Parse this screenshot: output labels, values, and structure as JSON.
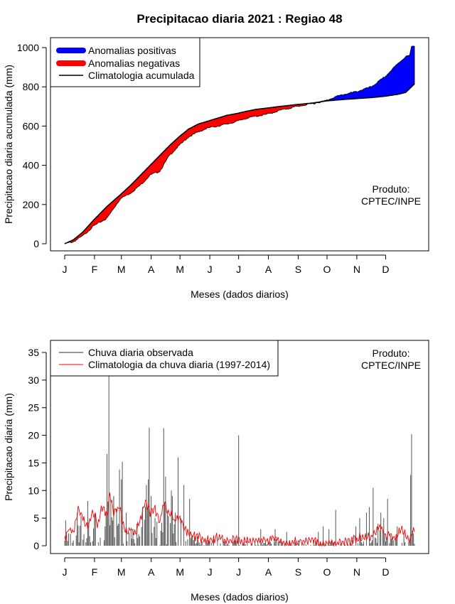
{
  "title": "Precipitacao diaria 2021 : Regiao 48",
  "colors": {
    "positive": "#0000ff",
    "negative": "#ff0000",
    "climatology": "#000000",
    "observed": "#555555",
    "daily_clim": "#ff0000"
  },
  "chart_data": [
    {
      "type": "area",
      "title": "Precipitacao diaria 2021 : Regiao 48",
      "xlabel": "Meses (dados diarios)",
      "ylabel": "Precipitacao diaria acumulada (mm)",
      "ylim": [
        0,
        1000
      ],
      "yticks": [
        "0",
        "200",
        "400",
        "600",
        "800",
        "1000"
      ],
      "months": [
        "J",
        "F",
        "M",
        "A",
        "M",
        "J",
        "J",
        "A",
        "S",
        "O",
        "N",
        "D"
      ],
      "legend": [
        "Anomalias positivas",
        "Anomalias negativas",
        "Climatologia acumulada"
      ],
      "annotation": [
        "Produto:",
        "CPTEC/INPE"
      ],
      "climatology_knots": [
        [
          1,
          0
        ],
        [
          10,
          20
        ],
        [
          20,
          60
        ],
        [
          31,
          120
        ],
        [
          45,
          190
        ],
        [
          59,
          250
        ],
        [
          70,
          300
        ],
        [
          80,
          350
        ],
        [
          90,
          400
        ],
        [
          100,
          450
        ],
        [
          110,
          500
        ],
        [
          120,
          545
        ],
        [
          130,
          585
        ],
        [
          140,
          610
        ],
        [
          150,
          625
        ],
        [
          160,
          640
        ],
        [
          170,
          655
        ],
        [
          181,
          665
        ],
        [
          190,
          675
        ],
        [
          200,
          685
        ],
        [
          212,
          692
        ],
        [
          225,
          700
        ],
        [
          243,
          710
        ],
        [
          260,
          718
        ],
        [
          273,
          728
        ],
        [
          290,
          735
        ],
        [
          304,
          740
        ],
        [
          320,
          745
        ],
        [
          334,
          752
        ],
        [
          348,
          762
        ],
        [
          356,
          772
        ],
        [
          365,
          815
        ]
      ],
      "observed_knots": [
        [
          1,
          0
        ],
        [
          10,
          10
        ],
        [
          20,
          40
        ],
        [
          31,
          90
        ],
        [
          45,
          130
        ],
        [
          59,
          230
        ],
        [
          70,
          260
        ],
        [
          80,
          300
        ],
        [
          90,
          350
        ],
        [
          100,
          370
        ],
        [
          110,
          450
        ],
        [
          120,
          500
        ],
        [
          130,
          545
        ],
        [
          140,
          570
        ],
        [
          150,
          590
        ],
        [
          160,
          600
        ],
        [
          170,
          610
        ],
        [
          181,
          625
        ],
        [
          190,
          640
        ],
        [
          200,
          650
        ],
        [
          212,
          660
        ],
        [
          225,
          680
        ],
        [
          243,
          700
        ],
        [
          260,
          715
        ],
        [
          273,
          730
        ],
        [
          280,
          745
        ],
        [
          290,
          760
        ],
        [
          304,
          775
        ],
        [
          320,
          800
        ],
        [
          334,
          850
        ],
        [
          348,
          920
        ],
        [
          356,
          955
        ],
        [
          360,
          960
        ],
        [
          362,
          1005
        ],
        [
          365,
          1010
        ]
      ]
    },
    {
      "type": "bar",
      "xlabel": "Meses (dados diarios)",
      "ylabel": "Precipitacao diaria (mm)",
      "ylim": [
        0,
        35
      ],
      "yticks": [
        "0",
        "5",
        "10",
        "15",
        "20",
        "25",
        "30",
        "35"
      ],
      "months": [
        "J",
        "F",
        "M",
        "A",
        "M",
        "J",
        "J",
        "A",
        "S",
        "O",
        "N",
        "D"
      ],
      "legend": [
        "Chuva diaria observada",
        "Climatologia da chuva diaria (1997-2014)"
      ],
      "annotation": [
        "Produto:",
        "CPTEC/INPE"
      ],
      "observed_spikes": [
        [
          2,
          4.6
        ],
        [
          14,
          6
        ],
        [
          25,
          8.1
        ],
        [
          33,
          6
        ],
        [
          45,
          16.6
        ],
        [
          46,
          8
        ],
        [
          47,
          31
        ],
        [
          52,
          9
        ],
        [
          58,
          13.8
        ],
        [
          60,
          12
        ],
        [
          61,
          15.2
        ],
        [
          65,
          6
        ],
        [
          76,
          4
        ],
        [
          82,
          7
        ],
        [
          86,
          11
        ],
        [
          88,
          12
        ],
        [
          89,
          21.4
        ],
        [
          91,
          9
        ],
        [
          95,
          5
        ],
        [
          104,
          21.3
        ],
        [
          106,
          12.5
        ],
        [
          112,
          10
        ],
        [
          113,
          9
        ],
        [
          116,
          6
        ],
        [
          119,
          16
        ],
        [
          122,
          5
        ],
        [
          125,
          11
        ],
        [
          131,
          8.5
        ],
        [
          182,
          20
        ],
        [
          205,
          3
        ],
        [
          220,
          3
        ],
        [
          232,
          2.5
        ],
        [
          265,
          2.5
        ],
        [
          270,
          3.5
        ],
        [
          276,
          3
        ],
        [
          283,
          6.5
        ],
        [
          304,
          3.5
        ],
        [
          308,
          5
        ],
        [
          315,
          6
        ],
        [
          318,
          7
        ],
        [
          322,
          10.5
        ],
        [
          327,
          4
        ],
        [
          330,
          6
        ],
        [
          333,
          5
        ],
        [
          337,
          8.5
        ],
        [
          347,
          3.5
        ],
        [
          361,
          12.8
        ],
        [
          362,
          20.2
        ]
      ],
      "climatology_knots": [
        [
          1,
          1
        ],
        [
          5,
          3
        ],
        [
          10,
          2
        ],
        [
          15,
          6.5
        ],
        [
          20,
          5
        ],
        [
          25,
          3.5
        ],
        [
          30,
          6.5
        ],
        [
          35,
          4
        ],
        [
          40,
          7
        ],
        [
          45,
          5.5
        ],
        [
          48,
          9.5
        ],
        [
          52,
          5.5
        ],
        [
          58,
          7
        ],
        [
          62,
          4
        ],
        [
          66,
          2.5
        ],
        [
          70,
          3
        ],
        [
          75,
          2.5
        ],
        [
          80,
          5
        ],
        [
          85,
          7.5
        ],
        [
          90,
          6
        ],
        [
          95,
          6.5
        ],
        [
          100,
          4
        ],
        [
          105,
          8.5
        ],
        [
          108,
          6
        ],
        [
          112,
          6
        ],
        [
          115,
          4.5
        ],
        [
          120,
          5.5
        ],
        [
          125,
          3
        ],
        [
          130,
          2
        ],
        [
          140,
          1.5
        ],
        [
          150,
          1
        ],
        [
          160,
          1.5
        ],
        [
          170,
          0.8
        ],
        [
          180,
          1
        ],
        [
          190,
          0.8
        ],
        [
          200,
          1
        ],
        [
          210,
          0.8
        ],
        [
          220,
          1.2
        ],
        [
          230,
          0.5
        ],
        [
          240,
          1
        ],
        [
          250,
          0.6
        ],
        [
          260,
          1
        ],
        [
          270,
          0.5
        ],
        [
          280,
          0.8
        ],
        [
          290,
          0.3
        ],
        [
          300,
          1
        ],
        [
          310,
          1.8
        ],
        [
          318,
          1.5
        ],
        [
          325,
          2.5
        ],
        [
          330,
          3.5
        ],
        [
          335,
          1.5
        ],
        [
          340,
          2
        ],
        [
          345,
          1.3
        ],
        [
          350,
          3
        ],
        [
          355,
          2.5
        ],
        [
          358,
          1
        ],
        [
          361,
          1.5
        ],
        [
          364,
          3.2
        ]
      ]
    }
  ]
}
